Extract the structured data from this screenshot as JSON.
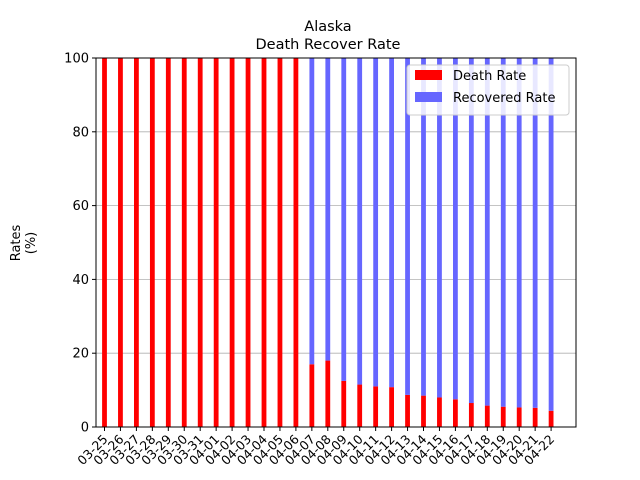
{
  "chart_data": {
    "type": "bar",
    "stacked": true,
    "title_line1": "Alaska",
    "title_line2": "Death Recover Rate",
    "ylabel_line1": "Rates",
    "ylabel_line2": "(%)",
    "xlabel": "",
    "ylim": [
      0,
      100
    ],
    "yticks": [
      0,
      20,
      40,
      60,
      80,
      100
    ],
    "grid": "horizontal",
    "legend_position": "top-right",
    "categories": [
      "03-25",
      "03-26",
      "03-27",
      "03-28",
      "03-29",
      "03-30",
      "03-31",
      "04-01",
      "04-02",
      "04-03",
      "04-04",
      "04-05",
      "04-06",
      "04-07",
      "04-08",
      "04-09",
      "04-10",
      "04-11",
      "04-12",
      "04-13",
      "04-14",
      "04-15",
      "04-16",
      "04-17",
      "04-18",
      "04-19",
      "04-20",
      "04-21",
      "04-22"
    ],
    "series": [
      {
        "name": "Death Rate",
        "color": "#ff0000",
        "values": [
          100,
          100,
          100,
          100,
          100,
          100,
          100,
          100,
          100,
          100,
          100,
          100,
          100,
          17,
          18,
          12.5,
          11.5,
          11,
          10.8,
          8.7,
          8.5,
          8,
          7.5,
          6.5,
          5.8,
          5.5,
          5.3,
          5.2,
          4.4
        ]
      },
      {
        "name": "Recovered Rate",
        "color": "#6666ff",
        "values": [
          0,
          0,
          0,
          0,
          0,
          0,
          0,
          0,
          0,
          0,
          0,
          0,
          0,
          83,
          82,
          87.5,
          88.5,
          89,
          89.2,
          91.3,
          91.5,
          92,
          92.5,
          93.5,
          94.2,
          94.5,
          94.7,
          94.8,
          95.6
        ]
      }
    ]
  }
}
